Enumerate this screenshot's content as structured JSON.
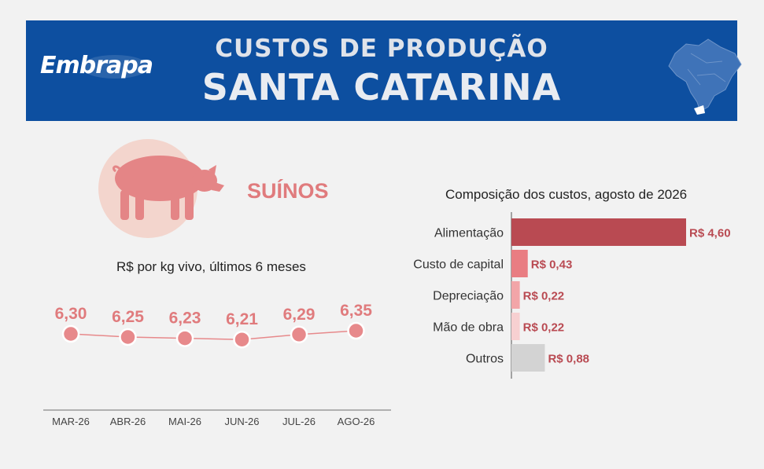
{
  "header": {
    "logo": "Embrapa",
    "title_line1": "CUSTOS DE PRODUÇÃO",
    "title_line2": "SANTA CATARINA"
  },
  "animal": {
    "label": "SUÍNOS",
    "icon": "pig-icon"
  },
  "colors": {
    "banner": "#0d4fa0",
    "accent": "#e07b7d",
    "bar_primary": "#b94a52",
    "bar_other": "#d3d3d3"
  },
  "chart_data": [
    {
      "type": "line",
      "title": "R$ por kg vivo, últimos 6 meses",
      "categories": [
        "MAR-26",
        "ABR-26",
        "MAI-26",
        "JUN-26",
        "JUL-26",
        "AGO-26"
      ],
      "values": [
        6.3,
        6.25,
        6.23,
        6.21,
        6.29,
        6.35
      ],
      "labels": [
        "6,30",
        "6,25",
        "6,23",
        "6,21",
        "6,29",
        "6,35"
      ],
      "grid": false
    },
    {
      "type": "bar",
      "orientation": "horizontal",
      "title": "Composição dos custos, agosto de 2026",
      "categories": [
        "Alimentação",
        "Custo de capital",
        "Depreciação",
        "Mão de obra",
        "Outros"
      ],
      "values": [
        4.6,
        0.43,
        0.22,
        0.22,
        0.88
      ],
      "labels": [
        "R$ 4,60",
        "R$ 0,43",
        "R$ 0,22",
        "R$ 0,22",
        "R$ 0,88"
      ],
      "colors": [
        "#b94a52",
        "#e97d82",
        "#f2a5a8",
        "#f7d0d1",
        "#d3d3d3"
      ]
    }
  ]
}
